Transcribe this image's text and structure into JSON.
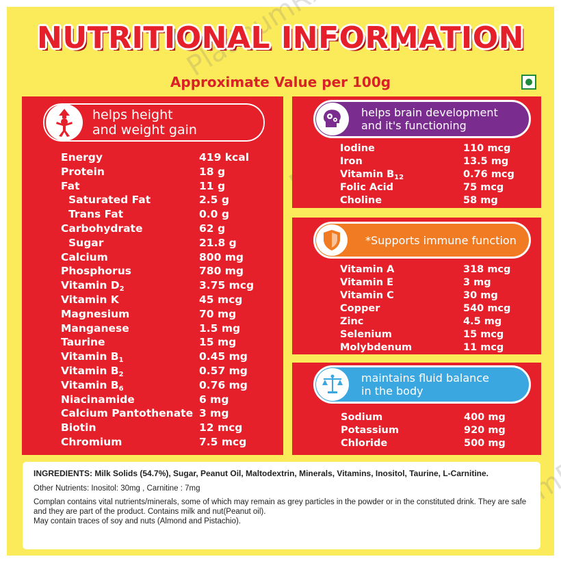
{
  "title": "NUTRITIONAL INFORMATION",
  "subtitle": "Approximate Value per 100g",
  "watermark": "PlatinumRx",
  "veg_mark_color": "#1f8a3a",
  "colors": {
    "background": "#fbeb5a",
    "panel": "#e5202a",
    "brain": "#7a2d8f",
    "immune": "#f07b22",
    "fluid": "#3aa7e0"
  },
  "left_panel": {
    "heading": [
      "helps height",
      "and weight gain"
    ],
    "icon": "growth-child-icon",
    "rows": [
      {
        "name": "Energy",
        "value": "419 kcal"
      },
      {
        "name": "Protein",
        "value": "18 g"
      },
      {
        "name": "Fat",
        "value": "11 g"
      },
      {
        "name": "Saturated Fat",
        "value": "2.5 g",
        "indent": true
      },
      {
        "name": "Trans Fat",
        "value": "0.0 g",
        "indent": true
      },
      {
        "name": "Carbohydrate",
        "value": "62 g"
      },
      {
        "name": "Sugar",
        "value": "21.8 g",
        "indent": true
      },
      {
        "name": "Calcium",
        "value": "800 mg"
      },
      {
        "name": "Phosphorus",
        "value": "780 mg"
      },
      {
        "name": "Vitamin D",
        "sub": "2",
        "value": "3.75 mcg"
      },
      {
        "name": "Vitamin K",
        "value": "45 mcg"
      },
      {
        "name": "Magnesium",
        "value": "70 mg"
      },
      {
        "name": "Manganese",
        "value": "1.5 mg"
      },
      {
        "name": "Taurine",
        "value": "15 mg"
      },
      {
        "name": "Vitamin B",
        "sub": "1",
        "value": "0.45 mg"
      },
      {
        "name": "Vitamin B",
        "sub": "2",
        "value": "0.57 mg"
      },
      {
        "name": "Vitamin B",
        "sub": "6",
        "value": "0.76 mg"
      },
      {
        "name": "Niacinamide",
        "value": "6 mg"
      },
      {
        "name": "Calcium Pantothenate",
        "value": "3 mg"
      },
      {
        "name": "Biotin",
        "value": "12 mcg"
      },
      {
        "name": "Chromium",
        "value": "7.5 mcg"
      }
    ]
  },
  "brain_panel": {
    "heading": [
      "helps brain development",
      "and it's functioning"
    ],
    "icon": "brain-gears-icon",
    "rows": [
      {
        "name": "Iodine",
        "value": "110 mcg"
      },
      {
        "name": "Iron",
        "value": "13.5 mg"
      },
      {
        "name": "Vitamin B",
        "sub": "12",
        "value": "0.76 mcg"
      },
      {
        "name": "Folic Acid",
        "value": "75 mcg"
      },
      {
        "name": "Choline",
        "value": "58 mg"
      }
    ]
  },
  "immune_panel": {
    "heading": [
      "*Supports immune function"
    ],
    "icon": "shield-icon",
    "rows": [
      {
        "name": "Vitamin A",
        "value": "318 mcg"
      },
      {
        "name": "Vitamin E",
        "value": "3 mg"
      },
      {
        "name": "Vitamin C",
        "value": "30 mg"
      },
      {
        "name": "Copper",
        "value": "540 mcg"
      },
      {
        "name": "Zinc",
        "value": "4.5 mg"
      },
      {
        "name": "Selenium",
        "value": "15 mcg"
      },
      {
        "name": "Molybdenum",
        "value": "11 mcg"
      }
    ]
  },
  "fluid_panel": {
    "heading": [
      "maintains fluid balance",
      "in the body"
    ],
    "icon": "balance-scale-icon",
    "rows": [
      {
        "name": "Sodium",
        "value": "400 mg"
      },
      {
        "name": "Potassium",
        "value": "920 mg"
      },
      {
        "name": "Chloride",
        "value": "500 mg"
      }
    ]
  },
  "ingredients": {
    "main": "INGREDIENTS: Milk Solids (54.7%), Sugar, Peanut Oil, Maltodextrin, Minerals, Vitamins, Inositol, Taurine, L-Carnitine.",
    "other": "Other Nutrients: Inositol: 30mg , Carnitine   : 7mg",
    "note1": "Complan contains vital nutrients/minerals, some of which may remain as grey particles in the powder or in the constituted drink. They are safe and they are part of the product. Contains milk and nut(Peanut oil).",
    "note2": "May contain traces of soy and nuts (Almond and Pistachio)."
  }
}
